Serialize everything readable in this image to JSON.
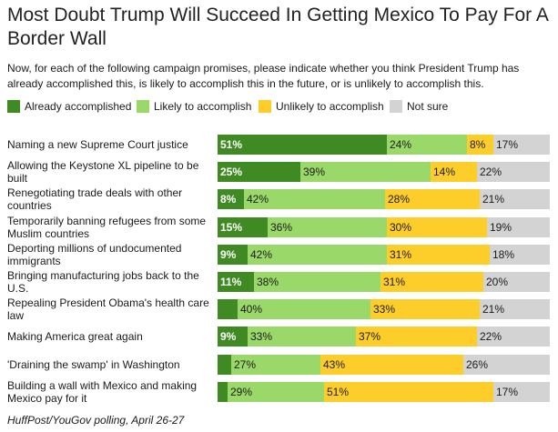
{
  "title": "Most Doubt Trump Will Succeed In Getting Mexico To Pay For A Border Wall",
  "subtitle": "Now, for each of the following campaign promises, please indicate whether you think President Trump has already accomplished this, is likely to accomplish this in the future, or is unlikely to accomplish this.",
  "source": "HuffPost/YouGov polling, April 26-27",
  "colors": {
    "already": "#3f8a22",
    "likely": "#9ad86a",
    "unlikely": "#fdcd2a",
    "not_sure": "#d3d3d3"
  },
  "chart_data": {
    "type": "bar",
    "orientation": "horizontal",
    "stacked": true,
    "unit": "%",
    "legend_position": "top-left",
    "grid": false,
    "categories": [
      "Naming a new Supreme Court justice",
      "Allowing the Keystone XL pipeline to be built",
      "Renegotiating trade deals with other countries",
      "Temporarily banning refugees from some Muslim countries",
      "Deporting millions of undocumented immigrants",
      "Bringing manufacturing jobs back to the U.S.",
      "Repealing President Obama's health care law",
      "Making America great again",
      "'Draining the swamp' in Washington",
      "Building a wall with Mexico and making Mexico pay for it"
    ],
    "series": [
      {
        "name": "Already accomplished",
        "key": "already",
        "values": [
          51,
          25,
          8,
          15,
          9,
          11,
          6,
          9,
          4,
          3
        ],
        "labels": [
          "51%",
          "25%",
          "8%",
          "15%",
          "9%",
          "11%",
          "",
          "9%",
          "",
          ""
        ]
      },
      {
        "name": "Likely to accomplish",
        "key": "likely",
        "values": [
          24,
          39,
          42,
          36,
          42,
          38,
          40,
          33,
          27,
          29
        ],
        "labels": [
          "24%",
          "39%",
          "42%",
          "36%",
          "42%",
          "38%",
          "40%",
          "33%",
          "27%",
          "29%"
        ]
      },
      {
        "name": "Unlikely to accomplish",
        "key": "unlikely",
        "values": [
          8,
          14,
          28,
          30,
          31,
          31,
          33,
          37,
          43,
          51
        ],
        "labels": [
          "8%",
          "14%",
          "28%",
          "30%",
          "31%",
          "31%",
          "33%",
          "37%",
          "43%",
          "51%"
        ]
      },
      {
        "name": "Not sure",
        "key": "not_sure",
        "values": [
          17,
          22,
          21,
          19,
          18,
          20,
          21,
          22,
          26,
          17
        ],
        "labels": [
          "17%",
          "22%",
          "21%",
          "19%",
          "18%",
          "20%",
          "21%",
          "22%",
          "26%",
          "17%"
        ]
      }
    ],
    "xlim": [
      0,
      100
    ]
  }
}
